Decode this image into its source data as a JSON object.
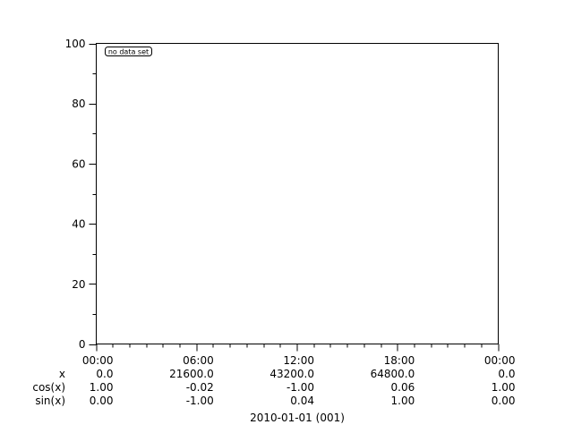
{
  "chart_data": {
    "type": "line",
    "title": "",
    "annotation": "no data set",
    "series": [],
    "ylim": [
      0,
      100
    ],
    "yticks": [
      "0",
      "20",
      "40",
      "60",
      "80",
      "100"
    ],
    "y_minor_step": 10,
    "x_axis_type": "time",
    "xlim": [
      "2010-01-01T00:00",
      "2010-01-02T00:00"
    ],
    "x_minor_step_hours": 1,
    "x_tick_rows": [
      {
        "label": "",
        "values": [
          "00:00",
          "06:00",
          "12:00",
          "18:00",
          "00:00"
        ]
      },
      {
        "label": "x",
        "values": [
          "0.0",
          "21600.0",
          "43200.0",
          "64800.0",
          "0.0"
        ]
      },
      {
        "label": "cos(x)",
        "values": [
          "1.00",
          "-0.02",
          "-1.00",
          "0.06",
          "1.00"
        ]
      },
      {
        "label": "sin(x)",
        "values": [
          "0.00",
          "-1.00",
          "0.04",
          "1.00",
          "0.00"
        ]
      }
    ],
    "xlabel": "2010-01-01 (001)",
    "grid": false,
    "legend": "none"
  }
}
